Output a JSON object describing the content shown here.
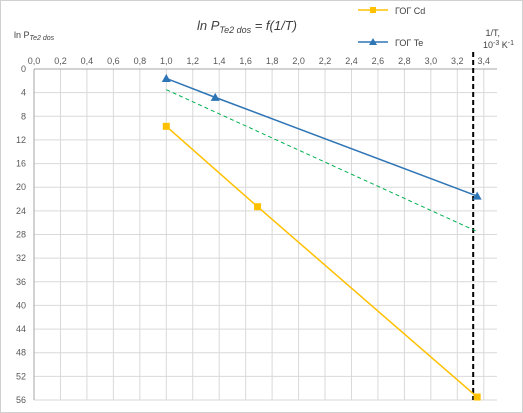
{
  "chart_data": {
    "type": "line",
    "title": {
      "main": "ln P",
      "sub": "Te2 dos",
      "tail": " = f(1/T)"
    },
    "ylabel": {
      "main": "ln P",
      "sub": "Te2 dos"
    },
    "xlabel": {
      "line1": "1/T,",
      "line2_base": "10",
      "line2_sup1": "-3",
      "line2_mid": " K",
      "line2_sup2": "-1"
    },
    "xlim": [
      0,
      3.5
    ],
    "ylim": [
      -56,
      0
    ],
    "y_axis_reversed": true,
    "x_ticks": [
      "0,0",
      "0,2",
      "0,4",
      "0,6",
      "0,8",
      "1,0",
      "1,2",
      "1,4",
      "1,6",
      "1,8",
      "2,0",
      "2,2",
      "2,4",
      "2,6",
      "2,8",
      "3,0",
      "3,2",
      "3,4"
    ],
    "y_ticks": [
      "0",
      "4",
      "8",
      "12",
      "16",
      "20",
      "24",
      "28",
      "32",
      "36",
      "40",
      "44",
      "48",
      "52",
      "56"
    ],
    "grid": true,
    "legend_position": "top-right",
    "series": [
      {
        "name": "ГОГ Cd",
        "color": "#FFC000",
        "marker": "square",
        "x": [
          1.0,
          1.69,
          3.35
        ],
        "y": [
          -9.7,
          -23.3,
          -55.5
        ]
      },
      {
        "name": "ГОГ Te",
        "color": "#2E75B6",
        "marker": "triangle",
        "x": [
          1.0,
          1.37,
          3.35
        ],
        "y": [
          -1.6,
          -4.8,
          -21.5
        ]
      }
    ],
    "trend_line": {
      "color": "#00B050",
      "style": "dashed",
      "x": [
        1.0,
        3.35
      ],
      "y": [
        -3.5,
        -27.5
      ]
    },
    "reference_line": {
      "color": "#000000",
      "style": "dashed",
      "x": 3.32
    }
  }
}
